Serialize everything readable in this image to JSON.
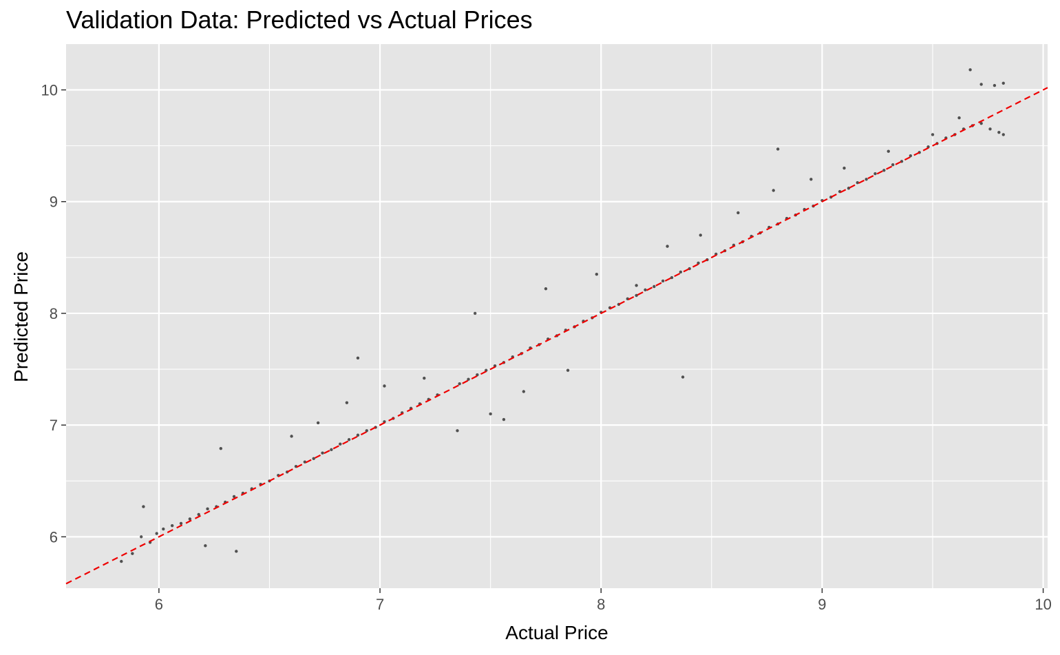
{
  "chart_data": {
    "type": "scatter",
    "title": "Validation Data: Predicted vs Actual Prices",
    "xlabel": "Actual Price",
    "ylabel": "Predicted Price",
    "xlim": [
      5.58,
      10.02
    ],
    "ylim": [
      5.54,
      10.41
    ],
    "x_ticks": [
      6,
      7,
      8,
      9,
      10
    ],
    "y_ticks": [
      6,
      7,
      8,
      9,
      10
    ],
    "grid": true,
    "point_color": "#000000",
    "point_opacity": 0.65,
    "background": "#e5e5e5",
    "gridline_color": "#ffffff",
    "reference_line": {
      "style": "dashed",
      "color": "#ee0000",
      "intercept": 0,
      "slope": 1
    },
    "series": [
      {
        "x": [
          5.83,
          5.88,
          5.92,
          5.96,
          5.99,
          6.02,
          6.06,
          6.1,
          6.14,
          6.18,
          6.22,
          6.26,
          6.3,
          6.34,
          6.38,
          6.42,
          6.46,
          6.5,
          6.54,
          6.58,
          6.62,
          6.66,
          6.7,
          6.74,
          6.78,
          6.82,
          6.86,
          6.9,
          6.94,
          6.98,
          7.02,
          7.06,
          7.1,
          7.14,
          7.18,
          7.22,
          7.26,
          7.36,
          7.4,
          7.44,
          7.48,
          7.52,
          7.56,
          7.6,
          7.64,
          7.68,
          7.72,
          7.76,
          7.8,
          7.84,
          7.88,
          7.92,
          7.96,
          8.0,
          8.04,
          8.08,
          8.12,
          8.16,
          8.2,
          8.24,
          8.28,
          8.32,
          8.36,
          8.4,
          8.44,
          8.48,
          8.52,
          8.56,
          8.6,
          8.64,
          8.68,
          8.72,
          8.76,
          8.8,
          8.84,
          8.88,
          8.92,
          8.96,
          9.0,
          9.04,
          9.08,
          9.12,
          9.16,
          9.2,
          9.24,
          9.28,
          9.32,
          9.36,
          9.4,
          9.44,
          9.48,
          9.52,
          9.56,
          9.6,
          9.64,
          9.68,
          9.72,
          9.76,
          9.8,
          9.82,
          5.93,
          6.35,
          6.21,
          6.9,
          7.43,
          7.56,
          7.75,
          7.85,
          8.37,
          8.8,
          9.67,
          9.72,
          9.78,
          9.82,
          6.28,
          6.6,
          6.72,
          6.85,
          7.02,
          7.2,
          7.35,
          7.5,
          7.65,
          7.98,
          8.16,
          8.3,
          8.45,
          8.62,
          8.78,
          8.95,
          9.1,
          9.3,
          9.5,
          9.62
        ],
        "y": [
          5.78,
          5.85,
          6.0,
          5.95,
          6.03,
          6.07,
          6.1,
          6.12,
          6.16,
          6.2,
          6.25,
          6.27,
          6.31,
          6.36,
          6.39,
          6.43,
          6.47,
          6.5,
          6.55,
          6.58,
          6.63,
          6.67,
          6.7,
          6.75,
          6.78,
          6.83,
          6.87,
          6.91,
          6.95,
          6.98,
          7.03,
          7.06,
          7.11,
          7.15,
          7.19,
          7.23,
          7.27,
          7.37,
          7.41,
          7.45,
          7.49,
          7.53,
          7.56,
          7.61,
          7.64,
          7.69,
          7.72,
          7.77,
          7.8,
          7.85,
          7.88,
          7.93,
          7.96,
          8.01,
          8.05,
          8.08,
          8.13,
          8.16,
          8.21,
          8.24,
          8.29,
          8.32,
          8.37,
          8.4,
          8.45,
          8.48,
          8.53,
          8.56,
          8.61,
          8.64,
          8.69,
          8.72,
          8.77,
          8.8,
          8.85,
          8.88,
          8.93,
          8.96,
          9.01,
          9.04,
          9.09,
          9.12,
          9.17,
          9.2,
          9.25,
          9.28,
          9.33,
          9.36,
          9.41,
          9.44,
          9.49,
          9.52,
          9.57,
          9.6,
          9.65,
          9.68,
          9.7,
          9.65,
          9.62,
          9.6,
          6.27,
          5.87,
          5.92,
          7.6,
          8.0,
          7.05,
          8.22,
          7.49,
          7.43,
          9.47,
          10.18,
          10.05,
          10.04,
          10.06,
          6.79,
          6.9,
          7.02,
          7.2,
          7.35,
          7.42,
          6.95,
          7.1,
          7.3,
          8.35,
          8.25,
          8.6,
          8.7,
          8.9,
          9.1,
          9.2,
          9.3,
          9.45,
          9.6,
          9.75
        ]
      }
    ]
  }
}
